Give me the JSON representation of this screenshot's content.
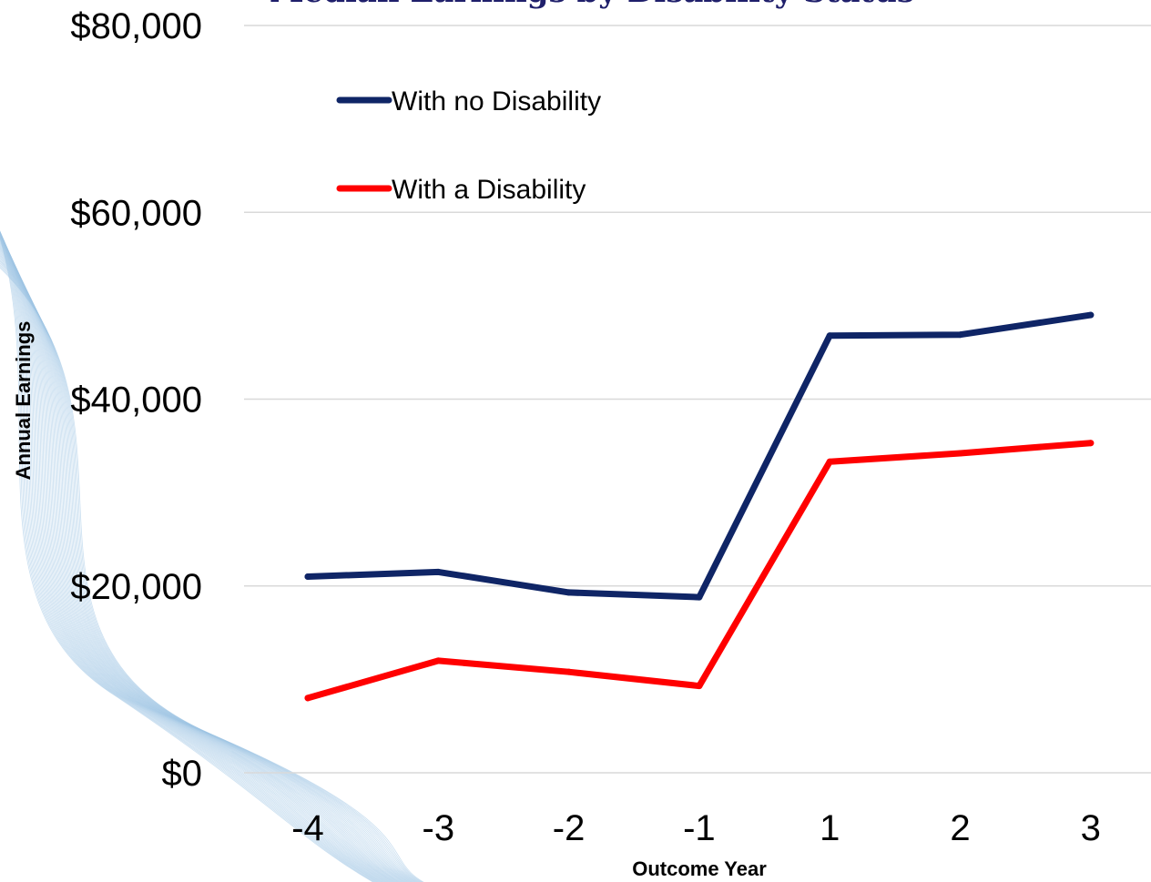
{
  "chart_data": {
    "type": "line",
    "title": "Median Earnings by Disability Status",
    "xlabel": "Outcome Year",
    "ylabel": "Annual Earnings",
    "categories": [
      "-4",
      "-3",
      "-2",
      "-1",
      "1",
      "2",
      "3"
    ],
    "ylim": [
      0,
      80000
    ],
    "yticks": [
      0,
      20000,
      40000,
      60000,
      80000
    ],
    "ytick_labels": [
      "$0",
      "$20,000",
      "$40,000",
      "$60,000",
      "$80,000"
    ],
    "grid": true,
    "legend_position": "top-left",
    "series": [
      {
        "name": "With no Disability",
        "color": "#0f2566",
        "values": [
          21000,
          21500,
          19300,
          18800,
          46800,
          46900,
          49000
        ]
      },
      {
        "name": "With a Disability",
        "color": "#ff0000",
        "values": [
          8000,
          12000,
          10800,
          9300,
          33300,
          34200,
          35300
        ]
      }
    ]
  },
  "decoration": {
    "wave_color": "#9ec4e4"
  }
}
